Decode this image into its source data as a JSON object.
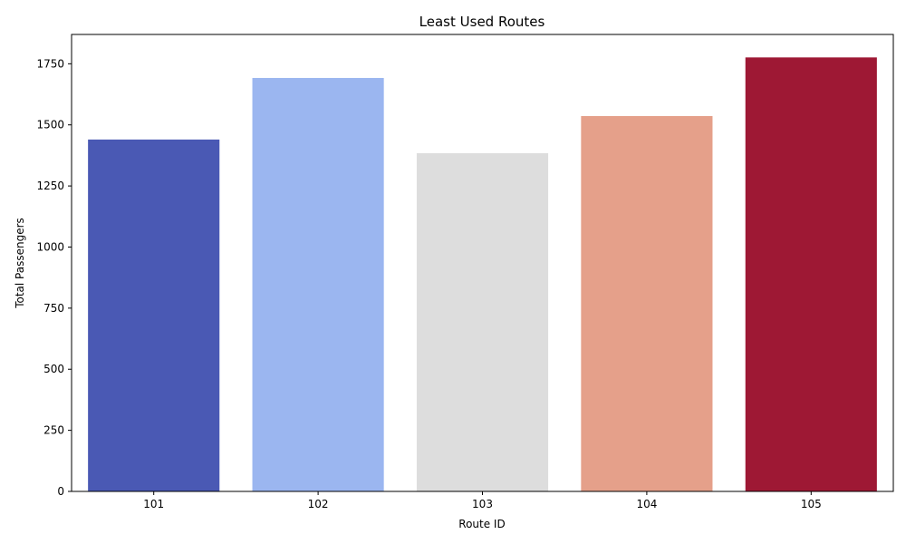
{
  "chart_data": {
    "type": "bar",
    "title": "Least Used Routes",
    "xlabel": "Route ID",
    "ylabel": "Total Passengers",
    "categories": [
      "101",
      "102",
      "103",
      "104",
      "105"
    ],
    "values": [
      1440,
      1692,
      1384,
      1536,
      1776
    ],
    "colors": [
      "#4a59b4",
      "#9bb6f0",
      "#dddddd",
      "#e5a08a",
      "#9e1834"
    ],
    "ylim": [
      0,
      1870
    ],
    "yticks": [
      0,
      250,
      500,
      750,
      1000,
      1250,
      1500,
      1750
    ],
    "grid": false,
    "legend": "none"
  }
}
